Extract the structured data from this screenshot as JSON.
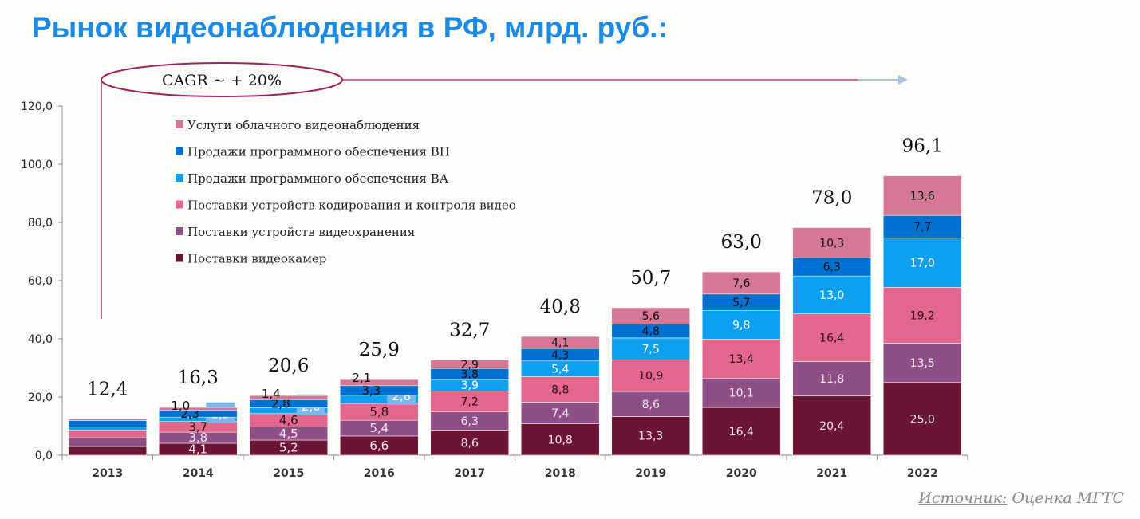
{
  "title": "Рынок видеонаблюдения в РФ, млрд. руб.:",
  "cagr_label": "CAGR ~ + 20%",
  "source": {
    "label": "Источник:",
    "text": " Оценка МГТС"
  },
  "chart_data": {
    "type": "stacked-bar",
    "title": "Рынок видеонаблюдения в РФ, млрд. руб.:",
    "categories": [
      "2013",
      "2014",
      "2015",
      "2016",
      "2017",
      "2018",
      "2019",
      "2020",
      "2021",
      "2022"
    ],
    "ylim": [
      0,
      120
    ],
    "yticks": [
      "0,0",
      "20,0",
      "40,0",
      "60,0",
      "80,0",
      "100,0",
      "120,0"
    ],
    "legend_position": "top-left",
    "totals": [
      "12,4",
      "16,3",
      "20,6",
      "25,9",
      "32,7",
      "40,8",
      "50,7",
      "63,0",
      "78,0",
      "96,1"
    ],
    "series": [
      {
        "name": "Поставки видеокамер",
        "color": "#6a1535",
        "label_color": "#f4e6ec",
        "values": [
          3.0,
          4.1,
          5.2,
          6.6,
          8.6,
          10.8,
          13.3,
          16.4,
          20.4,
          25.0
        ],
        "labeled": [
          false,
          true,
          true,
          true,
          true,
          true,
          true,
          true,
          true,
          true
        ]
      },
      {
        "name": "Поставки устройств видеохранения",
        "color": "#8e4f86",
        "label_color": "#f4e6f2",
        "values": [
          3.0,
          3.8,
          4.5,
          5.4,
          6.3,
          7.4,
          8.6,
          10.1,
          11.8,
          13.5
        ],
        "labeled": [
          false,
          true,
          true,
          true,
          true,
          true,
          true,
          true,
          true,
          true
        ]
      },
      {
        "name": "Поставки устройств кодирования и контроля видео",
        "color": "#e2678a",
        "label_color": "#2a1010",
        "values": [
          2.7,
          3.7,
          4.6,
          5.8,
          7.2,
          8.8,
          10.9,
          13.4,
          16.4,
          19.2
        ],
        "labeled": [
          false,
          true,
          true,
          true,
          true,
          true,
          true,
          true,
          true,
          true
        ]
      },
      {
        "name": "Продажи программного обеспечения ВА",
        "color": "#0ea0f0",
        "label_color": "#ffffff",
        "values": [
          1.0,
          1.5,
          2.0,
          2.8,
          3.9,
          5.4,
          7.5,
          9.8,
          13.0,
          17.0
        ],
        "labeled": [
          false,
          true,
          true,
          true,
          true,
          true,
          true,
          true,
          true,
          true
        ]
      },
      {
        "name": "Продажи программного обеспечения ВН",
        "color": "#0070d0",
        "label_color": "#101010",
        "values": [
          2.2,
          2.3,
          2.8,
          3.3,
          3.8,
          4.3,
          4.8,
          5.7,
          6.3,
          7.7
        ],
        "labeled": [
          false,
          true,
          true,
          true,
          true,
          true,
          true,
          true,
          true,
          true
        ]
      },
      {
        "name": "Услуги облачного видеонаблюдения",
        "color": "#d47893",
        "label_color": "#101010",
        "values": [
          0.5,
          1.0,
          1.4,
          2.1,
          2.9,
          4.1,
          5.6,
          7.6,
          10.3,
          13.6
        ],
        "labeled": [
          false,
          true,
          true,
          true,
          true,
          true,
          true,
          true,
          true,
          true
        ]
      }
    ]
  }
}
